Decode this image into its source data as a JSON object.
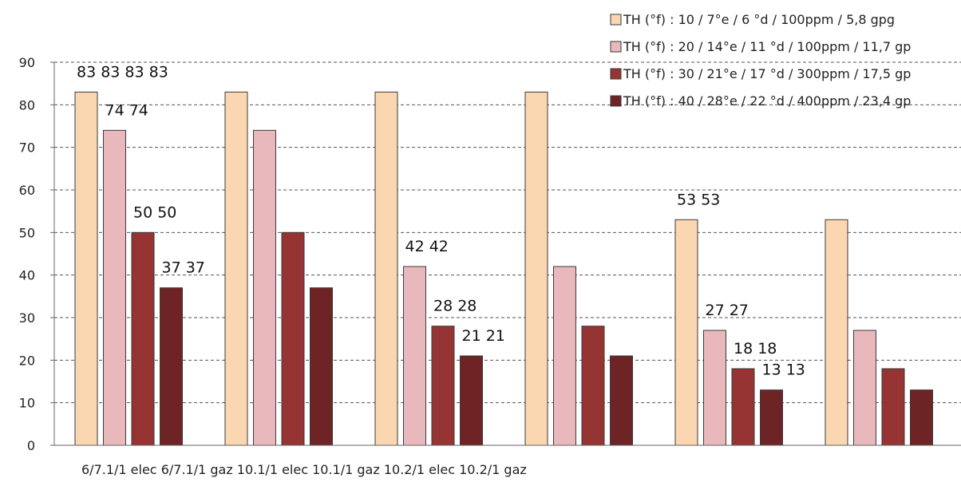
{
  "chart_data": {
    "type": "bar",
    "categories": [
      "6/7.1/1 elec",
      "6/7.1/1 gaz",
      "10.1/1 elec",
      "10.1/1 gaz",
      "10.2/1 elec",
      "10.2/1 gaz"
    ],
    "series": [
      {
        "name": "TH (°f) : 10 / 7°e / 6 °d / 100ppm / 5,8 gpg",
        "color": "#FAD7B0",
        "values": [
          83,
          83,
          83,
          83,
          53,
          53
        ]
      },
      {
        "name": "TH (°f) : 20 / 14°e / 11 °d / 100ppm / 11,7 gp",
        "color": "#E8B8BC",
        "values": [
          74,
          74,
          42,
          42,
          27,
          27
        ]
      },
      {
        "name": "TH (°f) : 30 / 21°e / 17 °d / 300ppm / 17,5 gp",
        "color": "#963434",
        "values": [
          50,
          50,
          28,
          28,
          18,
          18
        ]
      },
      {
        "name": "TH (°f) : 40 / 28°e / 22 °d / 400ppm / 23,4 gp",
        "color": "#6E2424",
        "values": [
          37,
          37,
          21,
          21,
          13,
          13
        ]
      }
    ],
    "data_labels": [
      {
        "series": 0,
        "category": 0,
        "text": "83 83 83 83"
      },
      {
        "series": 1,
        "category": 0,
        "text": "74 74"
      },
      {
        "series": 2,
        "category": 0,
        "text": "50 50"
      },
      {
        "series": 3,
        "category": 0,
        "text": "37 37"
      },
      {
        "series": 1,
        "category": 2,
        "text": "42 42"
      },
      {
        "series": 2,
        "category": 2,
        "text": "28 28"
      },
      {
        "series": 3,
        "category": 2,
        "text": "21 21"
      },
      {
        "series": 0,
        "category": 4,
        "text": "53 53"
      },
      {
        "series": 1,
        "category": 4,
        "text": "27 27"
      },
      {
        "series": 2,
        "category": 4,
        "text": "18 18"
      },
      {
        "series": 3,
        "category": 4,
        "text": "13 13"
      }
    ],
    "x_tick_line": "6/7.1/1 elec 6/7.1/1 gaz 10.1/1 elec 10.1/1 gaz 10.2/1 elec 10.2/1 gaz",
    "yticks": [
      0,
      10,
      20,
      30,
      40,
      50,
      60,
      70,
      80,
      90
    ],
    "ylim": [
      0,
      90
    ],
    "grid": true,
    "grid_style": "dashed",
    "legend_position": "top-right",
    "title": "",
    "xlabel": "",
    "ylabel": ""
  }
}
